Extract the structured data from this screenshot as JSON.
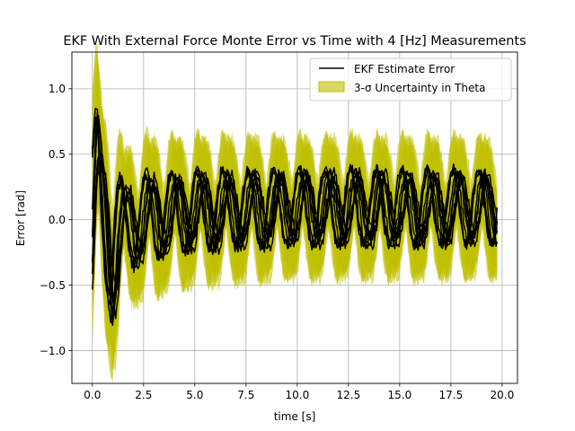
{
  "chart_data": {
    "type": "line",
    "title": "EKF With External Force Monte Error vs Time  with 4 [Hz] Measurements",
    "xlabel": "time [s]",
    "ylabel": "Error [rad]",
    "xlim": [
      -1.0,
      20.75
    ],
    "ylim": [
      -1.25,
      1.28
    ],
    "xticks": [
      0.0,
      2.5,
      5.0,
      7.5,
      10.0,
      12.5,
      15.0,
      17.5,
      20.0
    ],
    "xtick_labels": [
      "0.0",
      "2.5",
      "5.0",
      "7.5",
      "10.0",
      "12.5",
      "15.0",
      "17.5",
      "20.0"
    ],
    "yticks": [
      -1.0,
      -0.5,
      0.0,
      0.5,
      1.0
    ],
    "ytick_labels": [
      "−1.0",
      "−0.5",
      "0.0",
      "0.5",
      "1.0"
    ],
    "grid": true,
    "legend_position": "top-right",
    "series": [
      {
        "name": "EKF Estimate Error",
        "kind": "line",
        "color": "#000000",
        "oscillation_period": 1.25,
        "monte_carlo_runs": 10
      },
      {
        "name": "3-σ Uncertainty in Theta",
        "kind": "band",
        "color": "#bfbf00"
      }
    ],
    "time_range": [
      0.0,
      19.75
    ],
    "envelope": {
      "t": [
        0.0,
        0.25,
        0.5,
        1.0,
        1.5,
        2.5,
        5.0,
        10.0,
        15.0,
        19.75
      ],
      "upper": [
        0.85,
        1.17,
        0.7,
        0.55,
        0.45,
        0.6,
        0.6,
        0.6,
        0.6,
        0.6
      ],
      "lower": [
        -0.95,
        -0.6,
        -0.7,
        -1.15,
        -0.7,
        -0.6,
        -0.5,
        -0.45,
        -0.45,
        -0.45
      ]
    }
  }
}
